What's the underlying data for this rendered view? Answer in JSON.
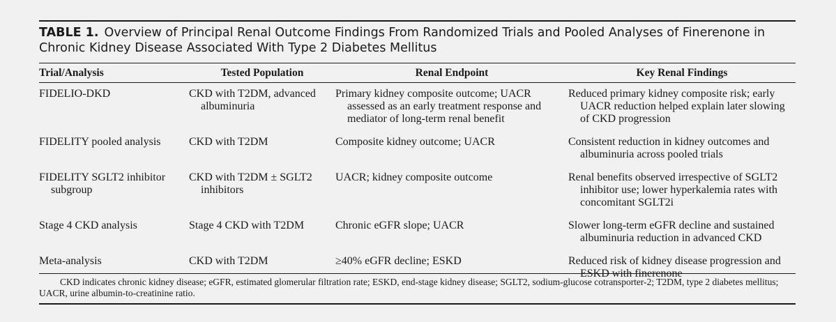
{
  "caption": {
    "label": "TABLE 1.",
    "text": "Overview of Principal Renal Outcome Findings From Randomized Trials and Pooled Analyses of Finerenone in Chronic Kidney Disease Associated With Type 2 Diabetes Mellitus"
  },
  "table": {
    "headers": [
      "Trial/Analysis",
      "Tested Population",
      "Renal Endpoint",
      "Key Renal Findings"
    ],
    "rows": [
      {
        "trial": "FIDELIO-DKD",
        "population": "CKD with T2DM, advanced albuminuria",
        "endpoint": "Primary kidney composite outcome; UACR assessed as an early treatment response and mediator of long-term renal benefit",
        "findings": "Reduced primary kidney composite risk; early UACR reduction helped explain later slowing of CKD progression"
      },
      {
        "trial": "FIDELITY pooled analysis",
        "population": "CKD with T2DM",
        "endpoint": "Composite kidney outcome; UACR",
        "findings": "Consistent reduction in kidney outcomes and albuminuria across pooled trials"
      },
      {
        "trial": "FIDELITY SGLT2 inhibitor subgroup",
        "population": "CKD with T2DM ± SGLT2 inhibitors",
        "endpoint": "UACR; kidney composite outcome",
        "findings": "Renal benefits observed irrespective of SGLT2 inhibitor use; lower hyperkalemia rates with concomitant SGLT2i"
      },
      {
        "trial": "Stage 4 CKD analysis",
        "population": "Stage 4 CKD with T2DM",
        "endpoint": "Chronic eGFR slope; UACR",
        "findings": "Slower long-term eGFR decline and sustained albuminuria reduction in advanced CKD"
      },
      {
        "trial": "Meta-analysis",
        "population": "CKD with T2DM",
        "endpoint": "≥40% eGFR decline; ESKD",
        "findings": "Reduced risk of kidney disease progression and ESKD with finerenone"
      }
    ]
  },
  "footnote": "CKD indicates chronic kidney disease; eGFR, estimated glomerular filtration rate; ESKD, end-stage kidney disease; SGLT2, sodium-glucose cotransporter-2; T2DM, type 2 diabetes mellitus; UACR, urine albumin-to-creatinine ratio."
}
